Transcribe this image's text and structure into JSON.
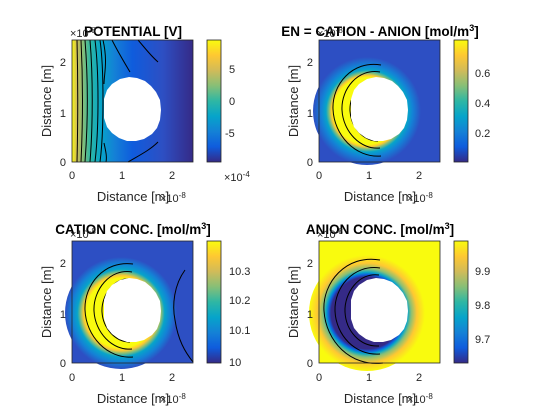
{
  "figure": {
    "panels": [
      {
        "title": "POTENTIAL [V]",
        "field": "potential",
        "colors": {
          "low": "#352a87",
          "mid": "#2fb1a8",
          "high": "#f9fb0e"
        },
        "cbar_ticks": [
          "5",
          "0",
          "-5"
        ],
        "cbar_tick_values": [
          5,
          0,
          -5
        ],
        "cbar_range": [
          -8.5,
          8.5
        ],
        "cbar_multiplier": "×10",
        "cbar_multiplier_exp": "-4"
      },
      {
        "title": "EN = CATION - ANION  [mol/m",
        "title_sup": "3",
        "title_end": "]",
        "field": "en",
        "cbar_ticks": [
          "0.6",
          "0.4",
          "0.2"
        ],
        "cbar_tick_values": [
          0.6,
          0.4,
          0.2
        ],
        "cbar_range": [
          0.01,
          0.77
        ],
        "cbar_multiplier": "",
        "cbar_multiplier_exp": ""
      },
      {
        "title": "CATION CONC. [mol/m",
        "title_sup": "3",
        "title_end": "]",
        "field": "cation",
        "cbar_ticks": [
          "10.3",
          "10.2",
          "10.1",
          "10"
        ],
        "cbar_tick_values": [
          10.3,
          10.2,
          10.1,
          10.0
        ],
        "cbar_range": [
          10.0,
          10.38
        ],
        "cbar_multiplier": "",
        "cbar_multiplier_exp": ""
      },
      {
        "title": "ANION CONC. [mol/m",
        "title_sup": "3",
        "title_end": "]",
        "field": "anion",
        "cbar_ticks": [
          "9.9",
          "9.8",
          "9.7"
        ],
        "cbar_tick_values": [
          9.9,
          9.8,
          9.7
        ],
        "cbar_range": [
          9.63,
          9.99
        ],
        "cbar_multiplier": "",
        "cbar_multiplier_exp": ""
      }
    ],
    "axes": {
      "xlabel": "Distance [m]",
      "ylabel": "Distance [m]",
      "xticks": [
        "0",
        "1",
        "2"
      ],
      "yticks": [
        "2",
        "1",
        "0"
      ],
      "x_multiplier": "×10",
      "x_multiplier_exp": "-8",
      "y_multiplier": "×10",
      "y_multiplier_exp": "-8"
    }
  },
  "chart_data": [
    {
      "type": "heatmap",
      "title": "POTENTIAL [V]",
      "xlabel": "Distance [m]",
      "ylabel": "Distance [m]",
      "xlim": [
        0,
        2.45e-08
      ],
      "ylim": [
        0,
        2.45e-08
      ],
      "clim": [
        -0.00085,
        0.00085
      ],
      "colorbar_ticks": [
        0.0005,
        0,
        -0.0005
      ],
      "hole": {
        "center": [
          1.22e-08,
          1.22e-08
        ],
        "radius": 5e-09
      },
      "contour_lines": 9
    },
    {
      "type": "heatmap",
      "title": "EN = CATION - ANION  [mol/m3]",
      "xlabel": "Distance [m]",
      "ylabel": "Distance [m]",
      "xlim": [
        0,
        2.45e-08
      ],
      "ylim": [
        0,
        2.45e-08
      ],
      "clim": [
        0.01,
        0.77
      ],
      "colorbar_ticks": [
        0.6,
        0.4,
        0.2
      ],
      "hole": {
        "center": [
          1.22e-08,
          1.22e-08
        ],
        "radius": 5e-09
      }
    },
    {
      "type": "heatmap",
      "title": "CATION CONC. [mol/m3]",
      "xlabel": "Distance [m]",
      "ylabel": "Distance [m]",
      "xlim": [
        0,
        2.45e-08
      ],
      "ylim": [
        0,
        2.45e-08
      ],
      "clim": [
        10.0,
        10.38
      ],
      "colorbar_ticks": [
        10.3,
        10.2,
        10.1,
        10
      ],
      "hole": {
        "center": [
          1.22e-08,
          1.22e-08
        ],
        "radius": 5e-09
      }
    },
    {
      "type": "heatmap",
      "title": "ANION CONC. [mol/m3]",
      "xlabel": "Distance [m]",
      "ylabel": "Distance [m]",
      "xlim": [
        0,
        2.45e-08
      ],
      "ylim": [
        0,
        2.45e-08
      ],
      "clim": [
        9.63,
        9.99
      ],
      "colorbar_ticks": [
        9.9,
        9.8,
        9.7
      ],
      "hole": {
        "center": [
          1.22e-08,
          1.22e-08
        ],
        "radius": 5e-09
      }
    }
  ]
}
